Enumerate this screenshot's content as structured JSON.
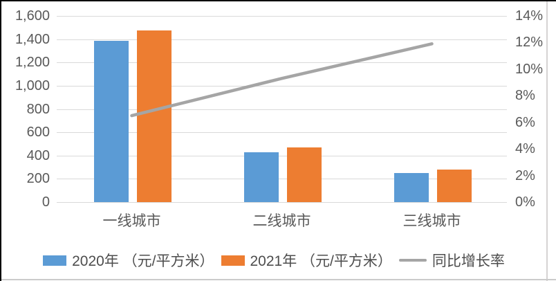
{
  "chart_data": {
    "type": "combo",
    "categories": [
      "一线城市",
      "二线城市",
      "三线城市"
    ],
    "series": [
      {
        "name": "2020年 （元/平方米）",
        "type": "bar",
        "axis": "left",
        "color": "#5B9BD5",
        "values": [
          1385,
          430,
          250
        ]
      },
      {
        "name": "2021年 （元/平方米）",
        "type": "bar",
        "axis": "left",
        "color": "#ED7D31",
        "values": [
          1475,
          470,
          280
        ]
      },
      {
        "name": "同比增长率",
        "type": "line",
        "axis": "right",
        "color": "#A5A5A5",
        "values": [
          6.5,
          9.3,
          11.9
        ]
      }
    ],
    "left_axis": {
      "min": 0,
      "max": 1600,
      "step": 200,
      "labels": [
        "0",
        "200",
        "400",
        "600",
        "800",
        "1,000",
        "1,200",
        "1,400",
        "1,600"
      ]
    },
    "right_axis": {
      "min": 0,
      "max": 14,
      "step": 2,
      "labels": [
        "0%",
        "2%",
        "4%",
        "6%",
        "8%",
        "10%",
        "12%",
        "14%"
      ]
    },
    "grid": true,
    "legend_position": "bottom"
  },
  "style": {
    "gridline_color": "#D9D9D9",
    "axis_text_color": "#595959",
    "legend_text_color": "#4d4d4d",
    "border_black": "#000000",
    "cell_line_gray": "#D5D3D3"
  }
}
